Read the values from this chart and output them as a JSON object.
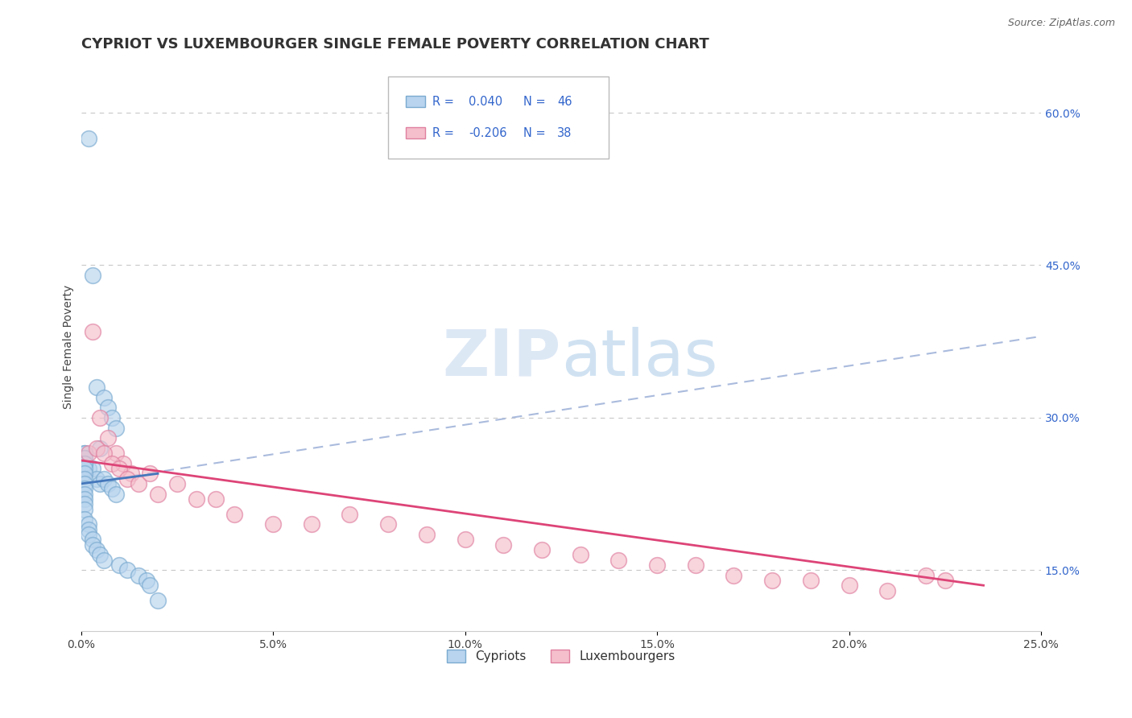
{
  "title": "CYPRIOT VS LUXEMBOURGER SINGLE FEMALE POVERTY CORRELATION CHART",
  "source": "Source: ZipAtlas.com",
  "ylabel": "Single Female Poverty",
  "xlim": [
    0.0,
    0.25
  ],
  "ylim": [
    0.09,
    0.65
  ],
  "yticks_right": [
    0.15,
    0.3,
    0.45,
    0.6
  ],
  "ytick_labels_right": [
    "15.0%",
    "30.0%",
    "45.0%",
    "60.0%"
  ],
  "xtick_vals": [
    0.0,
    0.05,
    0.1,
    0.15,
    0.2,
    0.25
  ],
  "xtick_labels": [
    "0.0%",
    "5.0%",
    "10.0%",
    "15.0%",
    "20.0%",
    "25.0%"
  ],
  "grid_color": "#c8c8c8",
  "background_color": "#ffffff",
  "cypriot_color": "#b8d4ee",
  "cypriot_edge_color": "#7aaad0",
  "luxembourger_color": "#f5bfcc",
  "luxembourger_edge_color": "#e080a0",
  "trend_blue_color": "#4477bb",
  "trend_pink_color": "#dd4477",
  "trend_dash_color": "#aabbdd",
  "legend_text_color": "#3366cc",
  "watermark_color": "#dde8f5",
  "title_fontsize": 13,
  "axis_label_fontsize": 10,
  "tick_fontsize": 10,
  "cypriot_x": [
    0.002,
    0.003,
    0.004,
    0.005,
    0.006,
    0.007,
    0.008,
    0.009,
    0.002,
    0.003,
    0.004,
    0.005,
    0.006,
    0.007,
    0.008,
    0.009,
    0.001,
    0.001,
    0.001,
    0.001,
    0.001,
    0.001,
    0.001,
    0.001,
    0.001,
    0.001,
    0.001,
    0.001,
    0.001,
    0.001,
    0.001,
    0.001,
    0.002,
    0.002,
    0.002,
    0.003,
    0.003,
    0.004,
    0.005,
    0.006,
    0.01,
    0.012,
    0.015,
    0.017,
    0.018,
    0.02
  ],
  "cypriot_y": [
    0.575,
    0.44,
    0.33,
    0.27,
    0.32,
    0.31,
    0.3,
    0.29,
    0.25,
    0.25,
    0.24,
    0.235,
    0.24,
    0.235,
    0.23,
    0.225,
    0.265,
    0.265,
    0.26,
    0.26,
    0.255,
    0.255,
    0.25,
    0.245,
    0.24,
    0.235,
    0.23,
    0.225,
    0.22,
    0.215,
    0.21,
    0.2,
    0.195,
    0.19,
    0.185,
    0.18,
    0.175,
    0.17,
    0.165,
    0.16,
    0.155,
    0.15,
    0.145,
    0.14,
    0.135,
    0.12
  ],
  "luxembourger_x": [
    0.003,
    0.005,
    0.007,
    0.009,
    0.011,
    0.013,
    0.002,
    0.004,
    0.006,
    0.008,
    0.01,
    0.012,
    0.015,
    0.018,
    0.02,
    0.025,
    0.03,
    0.035,
    0.04,
    0.05,
    0.06,
    0.07,
    0.08,
    0.09,
    0.1,
    0.11,
    0.12,
    0.13,
    0.14,
    0.15,
    0.16,
    0.17,
    0.18,
    0.19,
    0.2,
    0.21,
    0.22,
    0.225
  ],
  "luxembourger_y": [
    0.385,
    0.3,
    0.28,
    0.265,
    0.255,
    0.245,
    0.265,
    0.27,
    0.265,
    0.255,
    0.25,
    0.24,
    0.235,
    0.245,
    0.225,
    0.235,
    0.22,
    0.22,
    0.205,
    0.195,
    0.195,
    0.205,
    0.195,
    0.185,
    0.18,
    0.175,
    0.17,
    0.165,
    0.16,
    0.155,
    0.155,
    0.145,
    0.14,
    0.14,
    0.135,
    0.13,
    0.145,
    0.14
  ],
  "cypriot_trend_x": [
    0.0,
    0.02
  ],
  "cypriot_trend_y": [
    0.235,
    0.245
  ],
  "luxembourger_trend_x": [
    0.0,
    0.235
  ],
  "luxembourger_trend_y": [
    0.258,
    0.135
  ],
  "dash_trend_x": [
    0.0,
    0.25
  ],
  "dash_trend_y": [
    0.235,
    0.38
  ]
}
